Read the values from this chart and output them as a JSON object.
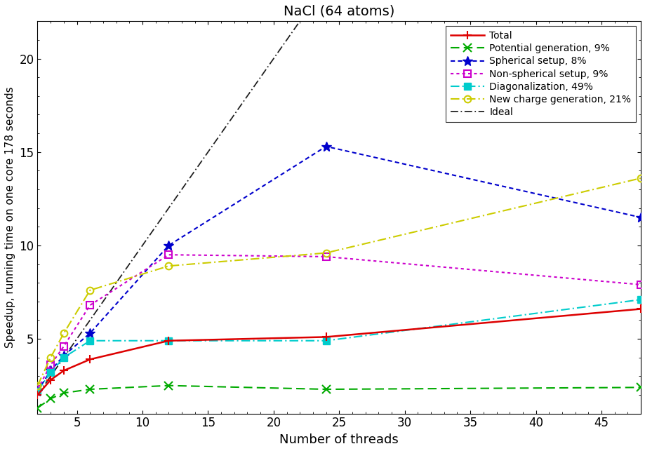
{
  "title": "NaCl (64 atoms)",
  "xlabel": "Number of threads",
  "ylabel": "Speedup, running time on one core 178 seconds",
  "xlim": [
    2,
    48
  ],
  "ylim": [
    1,
    22
  ],
  "total": {
    "label": "Total",
    "color": "#dd0000",
    "marker": "+",
    "markersize": 9,
    "linewidth": 1.8,
    "markeredgewidth": 1.5,
    "values_x": [
      2,
      3,
      4,
      6,
      12,
      24,
      48
    ],
    "values_y": [
      2.0,
      2.8,
      3.3,
      3.9,
      4.9,
      5.1,
      6.6
    ]
  },
  "potential": {
    "label": "Potential generation, 9%",
    "color": "#00aa00",
    "marker": "x",
    "markersize": 9,
    "linewidth": 1.5,
    "markeredgewidth": 1.5,
    "values_x": [
      2,
      3,
      4,
      6,
      12,
      24,
      48
    ],
    "values_y": [
      1.3,
      1.8,
      2.1,
      2.3,
      2.5,
      2.3,
      2.4
    ]
  },
  "spherical": {
    "label": "Spherical setup, 8%",
    "color": "#0000cc",
    "marker": "*",
    "markersize": 10,
    "linewidth": 1.5,
    "values_x": [
      2,
      3,
      4,
      6,
      12,
      24,
      48
    ],
    "values_y": [
      2.2,
      3.3,
      4.1,
      5.3,
      10.0,
      15.3,
      11.5
    ]
  },
  "nonspherical": {
    "label": "Non-spherical setup, 9%",
    "color": "#cc00cc",
    "marker": "s",
    "markersize": 7,
    "linewidth": 1.5,
    "values_x": [
      2,
      3,
      4,
      6,
      12,
      24,
      48
    ],
    "values_y": [
      2.3,
      3.6,
      4.6,
      6.8,
      9.5,
      9.4,
      7.9
    ]
  },
  "diagonalization": {
    "label": "Diagonalization, 49%",
    "color": "#00cccc",
    "marker": "s",
    "markersize": 7,
    "linewidth": 1.5,
    "values_x": [
      2,
      3,
      4,
      6,
      12,
      24,
      48
    ],
    "values_y": [
      2.2,
      3.2,
      4.0,
      4.9,
      4.9,
      4.9,
      7.1
    ]
  },
  "charge": {
    "label": "New charge generation, 21%",
    "color": "#cccc00",
    "marker": "o",
    "markersize": 7,
    "linewidth": 1.5,
    "values_x": [
      2,
      3,
      4,
      6,
      12,
      24,
      48
    ],
    "values_y": [
      2.5,
      4.0,
      5.3,
      7.6,
      8.9,
      9.6,
      13.6
    ]
  },
  "ideal": {
    "label": "Ideal",
    "color": "#222222",
    "linewidth": 1.3,
    "values_x": [
      2,
      3,
      4,
      6,
      12,
      22
    ],
    "values_y": [
      2,
      3,
      4,
      6,
      12,
      22
    ]
  },
  "background_color": "white"
}
